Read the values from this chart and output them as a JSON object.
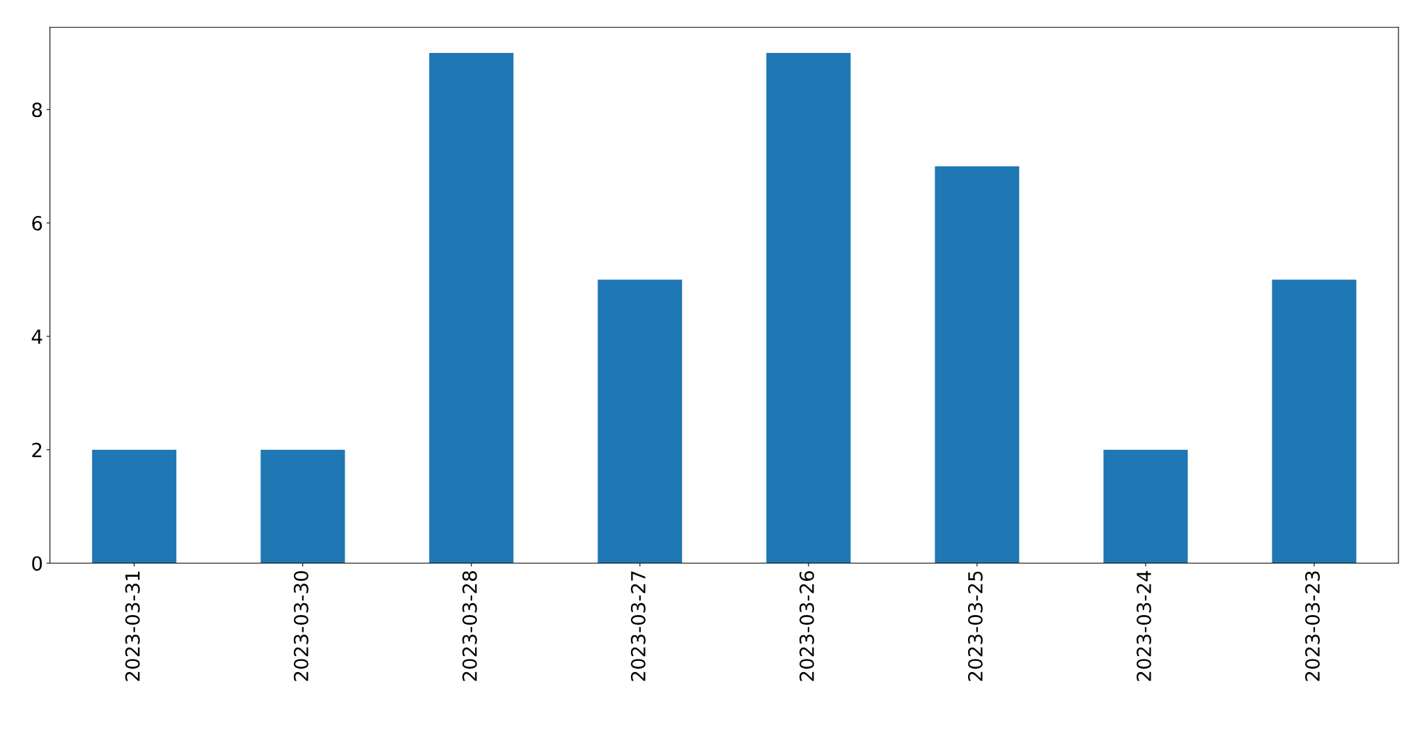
{
  "chart_data": {
    "type": "bar",
    "categories": [
      "2023-03-31",
      "2023-03-30",
      "2023-03-28",
      "2023-03-27",
      "2023-03-26",
      "2023-03-25",
      "2023-03-24",
      "2023-03-23"
    ],
    "values": [
      2,
      2,
      9,
      5,
      9,
      7,
      2,
      5
    ],
    "color": "#1f77b4",
    "ylim": [
      0,
      9.45
    ],
    "yticks": [
      0,
      2,
      4,
      6,
      8
    ],
    "grid": false,
    "legend": false
  }
}
